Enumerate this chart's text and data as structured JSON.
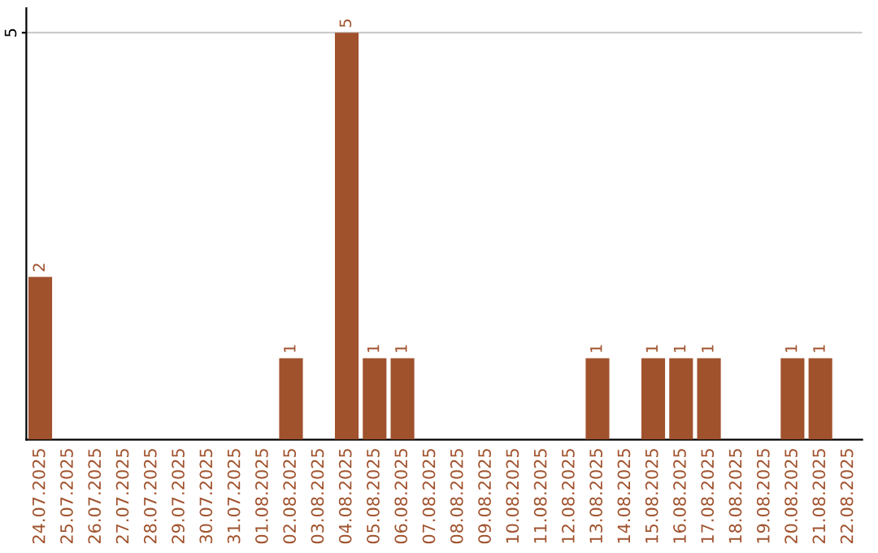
{
  "chart_data": {
    "type": "bar",
    "categories": [
      "24.07.2025",
      "25.07.2025",
      "26.07.2025",
      "27.07.2025",
      "28.07.2025",
      "29.07.2025",
      "30.07.2025",
      "31.07.2025",
      "01.08.2025",
      "02.08.2025",
      "03.08.2025",
      "04.08.2025",
      "05.08.2025",
      "06.08.2025",
      "07.08.2025",
      "08.08.2025",
      "09.08.2025",
      "10.08.2025",
      "11.08.2025",
      "12.08.2025",
      "13.08.2025",
      "14.08.2025",
      "15.08.2025",
      "16.08.2025",
      "17.08.2025",
      "18.08.2025",
      "19.08.2025",
      "20.08.2025",
      "21.08.2025",
      "22.08.2025"
    ],
    "values": [
      2,
      0,
      0,
      0,
      0,
      0,
      0,
      0,
      0,
      1,
      0,
      5,
      1,
      1,
      0,
      0,
      0,
      0,
      0,
      0,
      1,
      0,
      1,
      1,
      1,
      0,
      0,
      1,
      1,
      0
    ],
    "value_labels": [
      "2",
      null,
      null,
      null,
      null,
      null,
      null,
      null,
      null,
      "1",
      null,
      "5",
      "1",
      "1",
      null,
      null,
      null,
      null,
      null,
      null,
      "1",
      null,
      "1",
      "1",
      "1",
      null,
      null,
      "1",
      "1",
      null
    ],
    "color": "#a0522d",
    "ylim": [
      0,
      5.3
    ],
    "yticks": [
      5
    ],
    "grid": "y"
  }
}
